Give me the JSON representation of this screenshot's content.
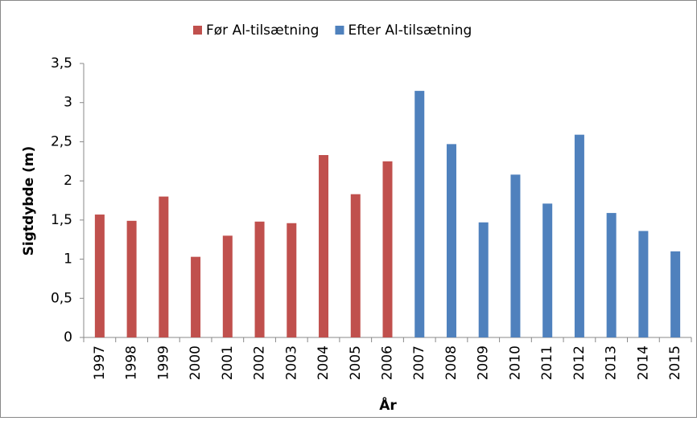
{
  "chart_data": {
    "type": "bar",
    "y_label": "Sigtdybde (m)",
    "x_label": "År",
    "categories": [
      "1997",
      "1998",
      "1999",
      "2000",
      "2001",
      "2002",
      "2003",
      "2004",
      "2005",
      "2006",
      "2007",
      "2008",
      "2009",
      "2010",
      "2011",
      "2012",
      "2013",
      "2014",
      "2015"
    ],
    "series": [
      {
        "name": "Før Al-tilsætning",
        "color": "#c0504d",
        "values": [
          1.57,
          1.49,
          1.8,
          1.03,
          1.3,
          1.48,
          1.46,
          2.33,
          1.83,
          2.25,
          null,
          null,
          null,
          null,
          null,
          null,
          null,
          null,
          null
        ]
      },
      {
        "name": "Efter Al-tilsætning",
        "color": "#4f81bd",
        "values": [
          null,
          null,
          null,
          null,
          null,
          null,
          null,
          null,
          null,
          null,
          3.15,
          2.47,
          1.47,
          2.08,
          1.71,
          2.59,
          1.59,
          1.36,
          1.1
        ]
      }
    ],
    "ylim": [
      0,
      3.5
    ],
    "yticks": [
      0,
      {
        "value": 0.5,
        "label": "0,5"
      },
      1,
      {
        "value": 1.5,
        "label": "1,5"
      },
      2,
      {
        "value": 2.5,
        "label": "2,5"
      },
      3,
      {
        "value": 3.5,
        "label": "3,5"
      }
    ],
    "grid": false,
    "legend": "top"
  }
}
